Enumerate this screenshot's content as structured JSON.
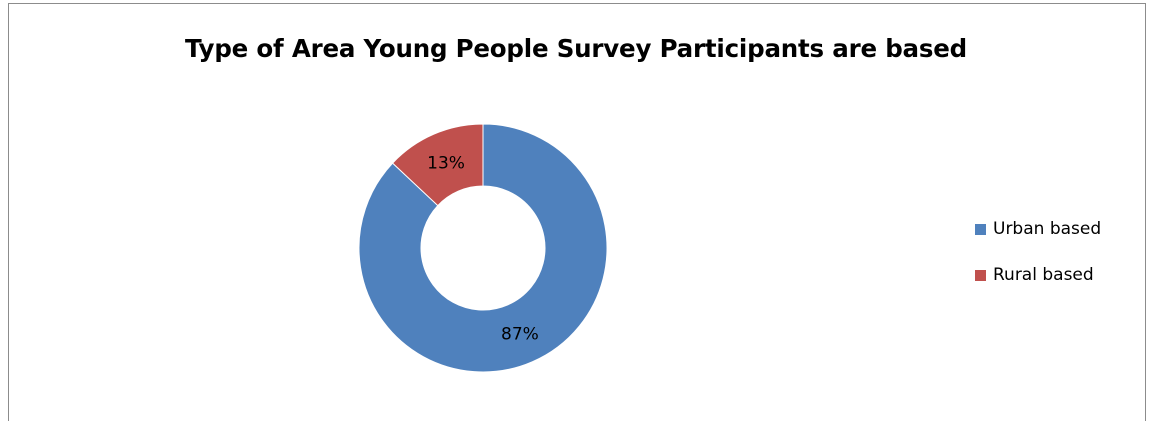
{
  "chart_data": {
    "type": "pie",
    "variant": "doughnut",
    "title": "Type of Area Young People Survey Participants are based",
    "slices": [
      {
        "label": "Urban based",
        "value": 87,
        "display": "87%",
        "color": "#4f81bd"
      },
      {
        "label": "Rural based",
        "value": 13,
        "display": "13%",
        "color": "#c0504d"
      }
    ],
    "legend_position": "right"
  }
}
